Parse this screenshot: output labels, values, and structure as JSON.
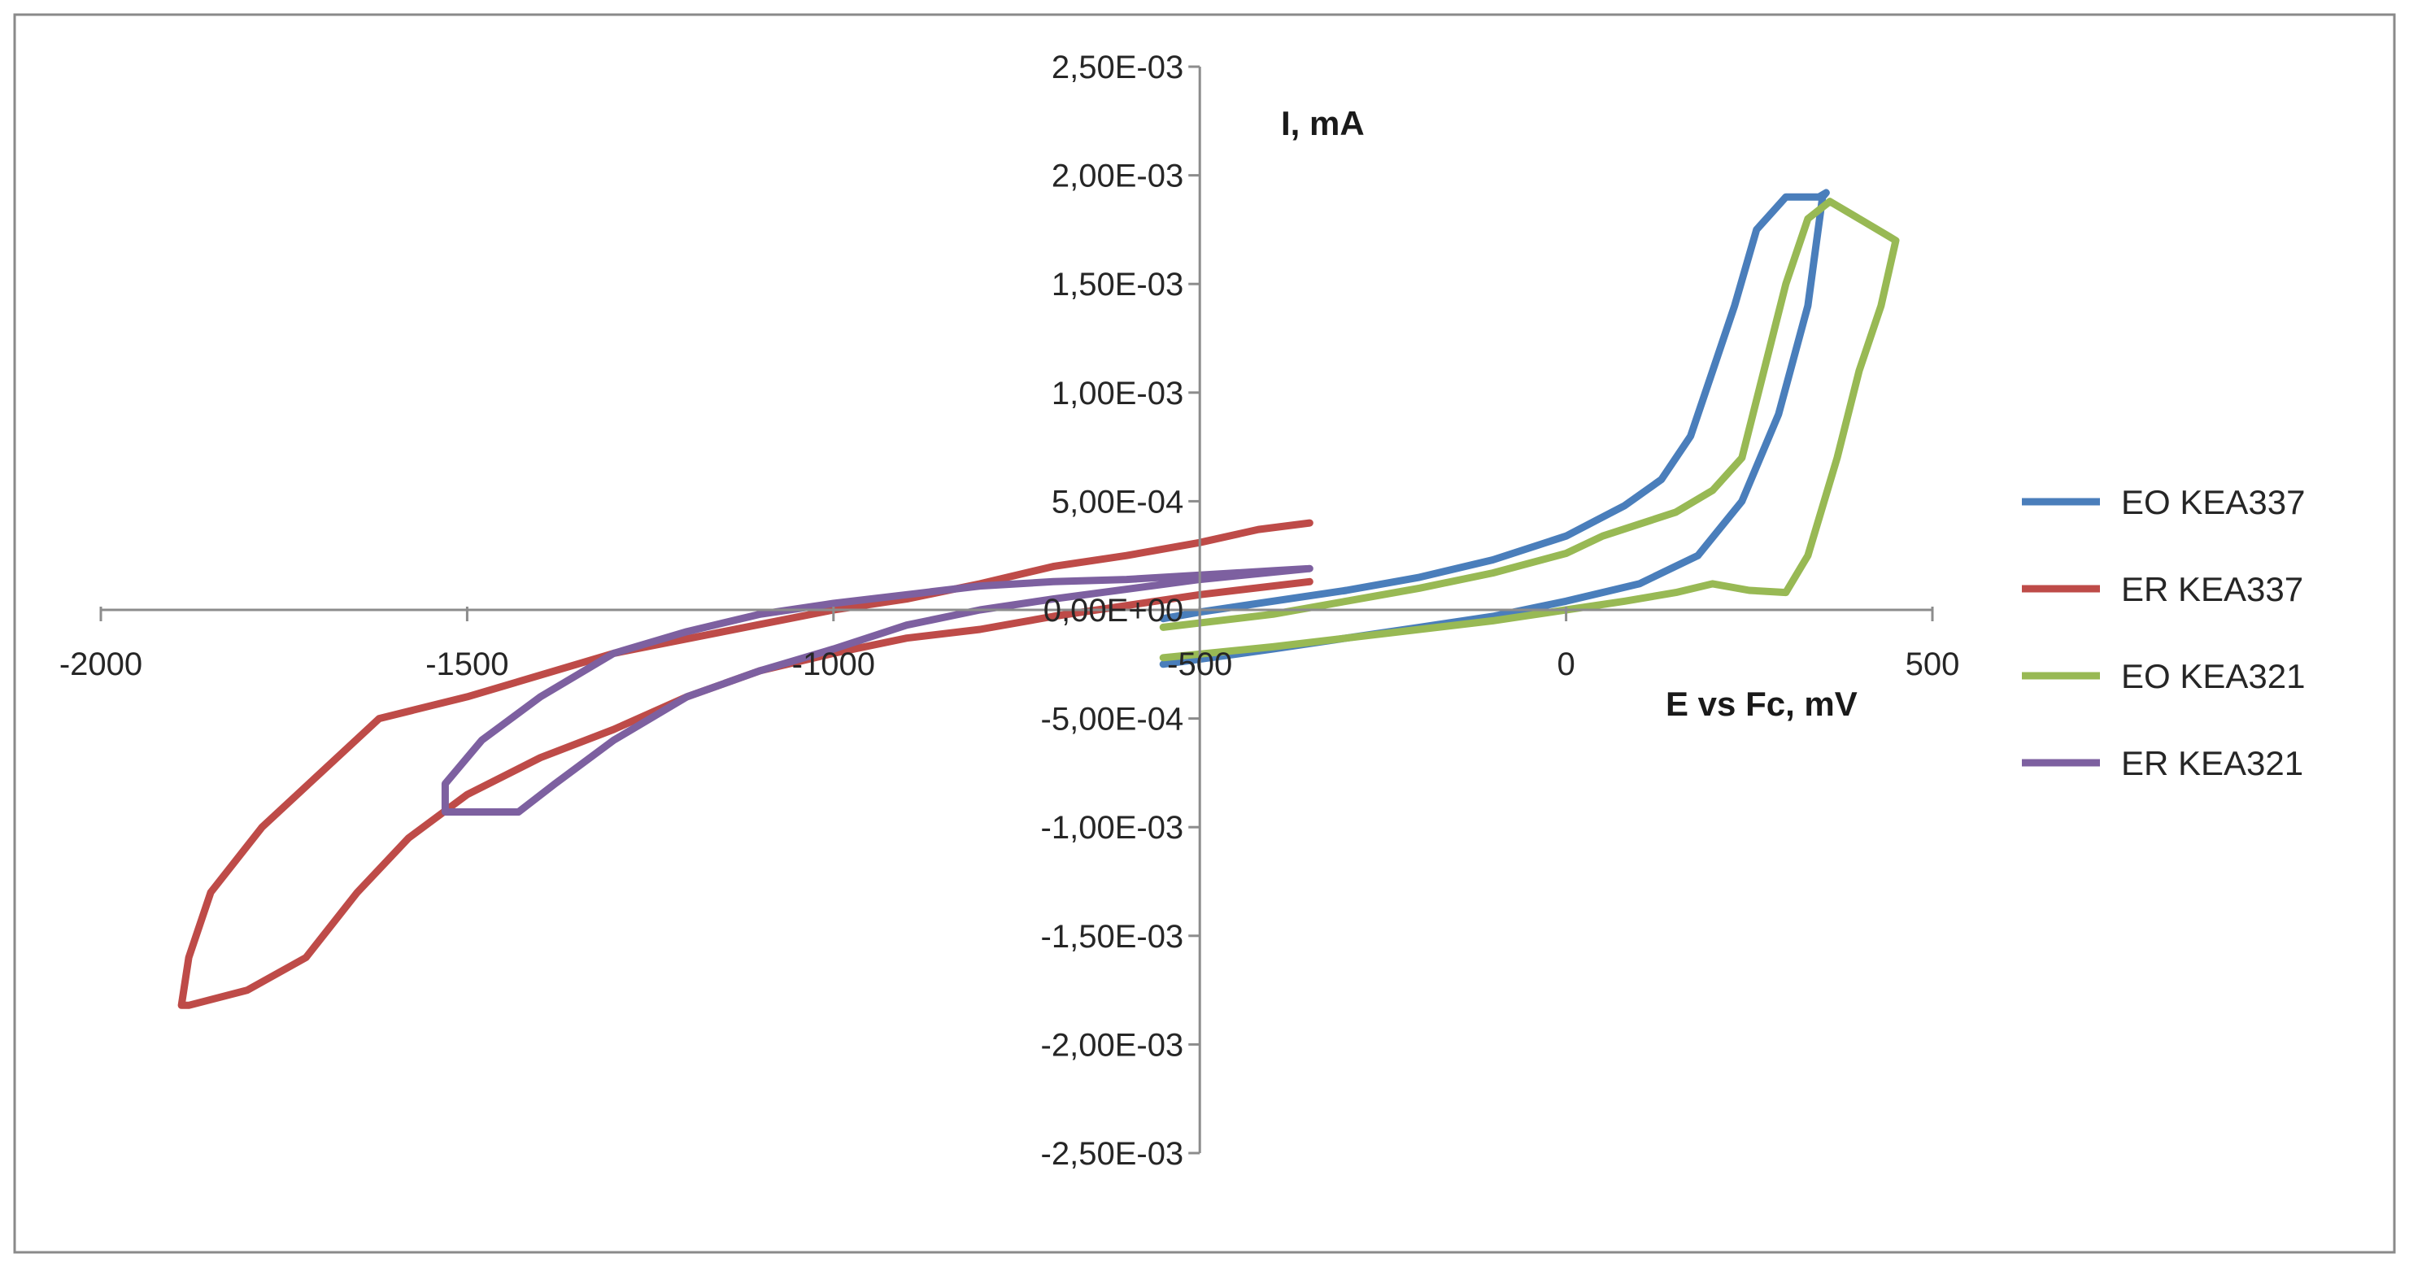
{
  "chart_data": {
    "type": "line",
    "title": "",
    "xlabel": "E vs Fc, mV",
    "ylabel": "I, mA",
    "xlim": [
      -2000,
      500
    ],
    "ylim": [
      -0.0025,
      0.0025
    ],
    "x_ticks": [
      -2000,
      -1500,
      -1000,
      -500,
      0,
      500
    ],
    "x_tick_labels": [
      "-2000",
      "-1500",
      "-1000",
      "-500",
      "0",
      "500"
    ],
    "y_ticks": [
      0.0025,
      0.002,
      0.0015,
      0.001,
      0.0005,
      0,
      -0.0005,
      -0.001,
      -0.0015,
      -0.002,
      -0.0025
    ],
    "y_tick_labels": [
      "2,50E-03",
      "2,00E-03",
      "1,50E-03",
      "1,00E-03",
      "5,00E-04",
      "0,00E+00",
      "-5,00E-04",
      "-1,00E-03",
      "-1,50E-03",
      "-2,00E-03",
      "-2,50E-03"
    ],
    "grid": false,
    "legend_position": "right",
    "series": [
      {
        "name": "EO KEA337",
        "color": "#4a7ebb",
        "points": [
          [
            -550,
            -0.00025
          ],
          [
            -400,
            -0.00018
          ],
          [
            -300,
            -0.00013
          ],
          [
            -200,
            -8e-05
          ],
          [
            -100,
            -3e-05
          ],
          [
            0,
            4e-05
          ],
          [
            100,
            0.00012
          ],
          [
            180,
            0.00025
          ],
          [
            240,
            0.0005
          ],
          [
            290,
            0.0009
          ],
          [
            330,
            0.0014
          ],
          [
            350,
            0.0019
          ],
          [
            355,
            0.00192
          ],
          [
            345,
            0.0019
          ],
          [
            300,
            0.0019
          ],
          [
            260,
            0.00175
          ],
          [
            230,
            0.0014
          ],
          [
            200,
            0.0011
          ],
          [
            170,
            0.0008
          ],
          [
            130,
            0.0006
          ],
          [
            80,
            0.00048
          ],
          [
            0,
            0.00034
          ],
          [
            -100,
            0.00023
          ],
          [
            -200,
            0.00015
          ],
          [
            -300,
            9e-05
          ],
          [
            -400,
            4e-05
          ],
          [
            -500,
            -1e-05
          ],
          [
            -550,
            -4e-05
          ]
        ]
      },
      {
        "name": "ER KEA337",
        "color": "#be4b48",
        "points": [
          [
            -350,
            0.00013
          ],
          [
            -500,
            7e-05
          ],
          [
            -700,
            -3e-05
          ],
          [
            -800,
            -9e-05
          ],
          [
            -900,
            -0.00013
          ],
          [
            -1000,
            -0.0002
          ],
          [
            -1100,
            -0.00028
          ],
          [
            -1200,
            -0.0004
          ],
          [
            -1300,
            -0.00055
          ],
          [
            -1400,
            -0.00068
          ],
          [
            -1500,
            -0.00085
          ],
          [
            -1580,
            -0.00105
          ],
          [
            -1650,
            -0.0013
          ],
          [
            -1720,
            -0.0016
          ],
          [
            -1800,
            -0.00175
          ],
          [
            -1880,
            -0.00182
          ],
          [
            -1890,
            -0.00182
          ],
          [
            -1880,
            -0.0016
          ],
          [
            -1850,
            -0.0013
          ],
          [
            -1780,
            -0.001
          ],
          [
            -1700,
            -0.00075
          ],
          [
            -1620,
            -0.0005
          ],
          [
            -1500,
            -0.0004
          ],
          [
            -1400,
            -0.0003
          ],
          [
            -1300,
            -0.0002
          ],
          [
            -1150,
            -0.0001
          ],
          [
            -1000,
            0
          ],
          [
            -900,
            5e-05
          ],
          [
            -800,
            0.00012
          ],
          [
            -700,
            0.0002
          ],
          [
            -600,
            0.00025
          ],
          [
            -500,
            0.00031
          ],
          [
            -420,
            0.00037
          ],
          [
            -350,
            0.0004
          ]
        ]
      },
      {
        "name": "EO KEA321",
        "color": "#98b954",
        "points": [
          [
            -550,
            -0.00022
          ],
          [
            -400,
            -0.00017
          ],
          [
            -300,
            -0.00013
          ],
          [
            -200,
            -9e-05
          ],
          [
            -100,
            -5e-05
          ],
          [
            0,
            0
          ],
          [
            80,
            4e-05
          ],
          [
            150,
            8e-05
          ],
          [
            200,
            0.00012
          ],
          [
            250,
            9e-05
          ],
          [
            300,
            8e-05
          ],
          [
            330,
            0.00025
          ],
          [
            370,
            0.0007
          ],
          [
            400,
            0.0011
          ],
          [
            430,
            0.0014
          ],
          [
            450,
            0.0017
          ],
          [
            440,
            0.00172
          ],
          [
            400,
            0.0018
          ],
          [
            360,
            0.00188
          ],
          [
            330,
            0.0018
          ],
          [
            300,
            0.0015
          ],
          [
            270,
            0.0011
          ],
          [
            240,
            0.0007
          ],
          [
            200,
            0.00055
          ],
          [
            150,
            0.00045
          ],
          [
            50,
            0.00034
          ],
          [
            0,
            0.00026
          ],
          [
            -100,
            0.00017
          ],
          [
            -200,
            0.0001
          ],
          [
            -300,
            4e-05
          ],
          [
            -400,
            -2e-05
          ],
          [
            -550,
            -8e-05
          ]
        ]
      },
      {
        "name": "ER KEA321",
        "color": "#7d60a0",
        "points": [
          [
            -350,
            0.00019
          ],
          [
            -500,
            0.00014
          ],
          [
            -700,
            5e-05
          ],
          [
            -800,
            0
          ],
          [
            -900,
            -7e-05
          ],
          [
            -1000,
            -0.00018
          ],
          [
            -1100,
            -0.00028
          ],
          [
            -1200,
            -0.0004
          ],
          [
            -1300,
            -0.0006
          ],
          [
            -1380,
            -0.0008
          ],
          [
            -1430,
            -0.00093
          ],
          [
            -1480,
            -0.00093
          ],
          [
            -1530,
            -0.00093
          ],
          [
            -1530,
            -0.0008
          ],
          [
            -1480,
            -0.0006
          ],
          [
            -1400,
            -0.0004
          ],
          [
            -1300,
            -0.0002
          ],
          [
            -1200,
            -0.0001
          ],
          [
            -1100,
            -2e-05
          ],
          [
            -1000,
            3e-05
          ],
          [
            -900,
            7e-05
          ],
          [
            -800,
            0.00011
          ],
          [
            -700,
            0.00013
          ],
          [
            -600,
            0.00014
          ],
          [
            -500,
            0.00016
          ],
          [
            -400,
            0.00018
          ],
          [
            -350,
            0.00019
          ]
        ]
      }
    ]
  }
}
